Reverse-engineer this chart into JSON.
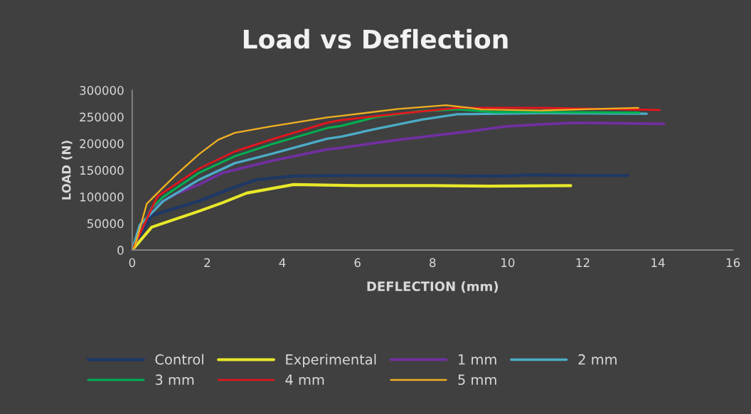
{
  "chart_data": {
    "type": "line",
    "title": "Load vs Deflection",
    "xlabel": "DEFLECTION (mm)",
    "ylabel": "LOAD (N)",
    "xlim": [
      0,
      16
    ],
    "xticks": [
      0,
      2,
      4,
      6,
      8,
      10,
      12,
      14,
      16
    ],
    "ylim": [
      0,
      300000
    ],
    "yticks": [
      0,
      50000,
      100000,
      150000,
      200000,
      250000,
      300000
    ],
    "grid": false,
    "legend": "bottom",
    "marker": "none",
    "line_style": "solid",
    "series": [
      {
        "name": "Control",
        "color": "#1f3864",
        "x": [
          0,
          0.52,
          1.78,
          2.54,
          3.3,
          4.3,
          5.57,
          7,
          8,
          9,
          10,
          10.5,
          12,
          13.2
        ],
        "values": [
          0,
          65000,
          92000,
          113000,
          132000,
          139000,
          140000,
          140000,
          140000,
          139000,
          139000,
          141000,
          140000,
          140000
        ]
      },
      {
        "name": "Experimental",
        "color": "#e8e82a",
        "x": [
          0,
          0.52,
          1.78,
          2.41,
          3.05,
          4.3,
          6,
          8,
          9.5,
          11.68
        ],
        "values": [
          0,
          43000,
          73000,
          89000,
          107000,
          123000,
          121000,
          121000,
          120000,
          121000
        ]
      },
      {
        "name": "1 mm",
        "color": "#7030a0",
        "x": [
          0,
          0.52,
          1.15,
          1.78,
          2.41,
          3.68,
          5.19,
          5.57,
          7.09,
          8.99,
          9.93,
          10.88,
          11.77,
          14.16
        ],
        "values": [
          0,
          80000,
          105000,
          123000,
          145000,
          167000,
          189000,
          192000,
          207000,
          223000,
          232000,
          236000,
          239000,
          237000
        ]
      },
      {
        "name": "2 mm",
        "color": "#4bacc6",
        "x": [
          0,
          0.2,
          0.83,
          1.78,
          2.73,
          3.68,
          5.19,
          5.57,
          6.46,
          7.72,
          8.66,
          10.88,
          13.7
        ],
        "values": [
          0,
          47000,
          92000,
          132000,
          163000,
          180000,
          209000,
          213000,
          227000,
          245000,
          255000,
          257000,
          256000
        ]
      },
      {
        "name": "3 mm",
        "color": "#00b050",
        "x": [
          0,
          0.52,
          0.83,
          1.78,
          2.73,
          3.68,
          5.19,
          5.57,
          6.46,
          7.72,
          8.66,
          9.6,
          10.88,
          13.5
        ],
        "values": [
          0,
          79000,
          100000,
          145000,
          176000,
          198000,
          229000,
          233000,
          249000,
          261000,
          264000,
          259000,
          259000,
          258000
        ]
      },
      {
        "name": "4 mm",
        "color": "#e8141c",
        "x": [
          0,
          0.58,
          0.68,
          1.78,
          2.73,
          3.68,
          5.19,
          5.57,
          7.09,
          8.66,
          9.6,
          10.88,
          14.05
        ],
        "values": [
          0,
          87000,
          101000,
          153000,
          185000,
          207000,
          239000,
          244000,
          256000,
          267000,
          267000,
          267000,
          263000
        ]
      },
      {
        "name": "5 mm",
        "color": "#f0b020",
        "x": [
          0,
          0.07,
          0.39,
          0.83,
          1.15,
          1.78,
          2.29,
          2.73,
          3.68,
          5.19,
          5.57,
          7.09,
          8.36,
          8.99,
          9.3,
          10.88,
          13.48
        ],
        "values": [
          0,
          7000,
          87000,
          118000,
          140000,
          180000,
          207000,
          220000,
          232000,
          249000,
          252000,
          265000,
          272000,
          267000,
          264000,
          262000,
          267000
        ]
      }
    ]
  }
}
